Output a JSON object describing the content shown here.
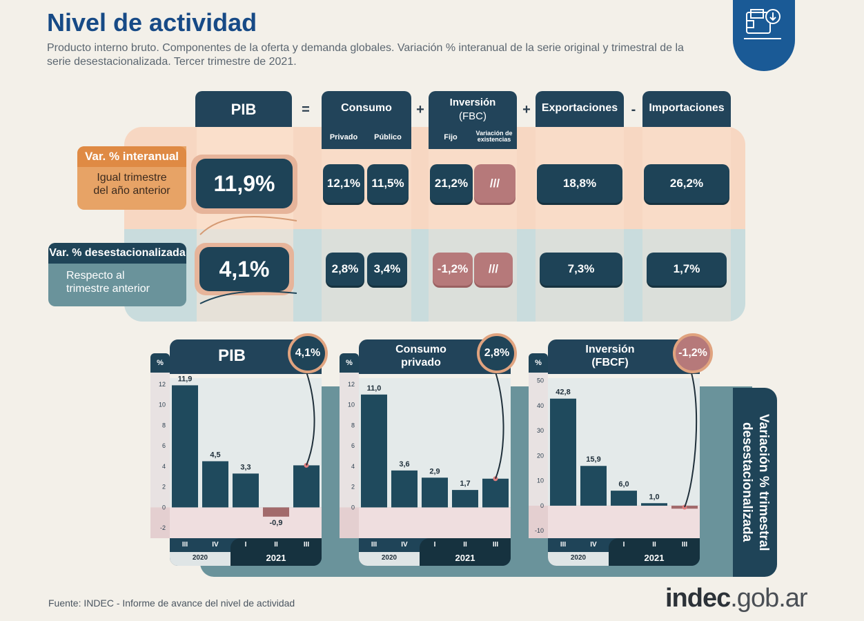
{
  "title": "Nivel de actividad",
  "subtitle": "Producto interno bruto. Componentes de la oferta y demanda globales. Variación % interanual de la serie original y trimestral de la serie desestacionalizada. Tercer trimestre de 2021.",
  "equation": {
    "pib": "PIB",
    "eq": "=",
    "plus1": "+",
    "plus2": "+",
    "minus": "-",
    "consumo": "Consumo",
    "privado": "Privado",
    "publico": "Público",
    "inversion": "Inversión",
    "inversion_sub": "(FBC)",
    "fijo": "Fijo",
    "var_exist_1": "Variación de",
    "var_exist_2": "existencias",
    "exportaciones": "Exportaciones",
    "importaciones": "Importaciones"
  },
  "row_interanual": {
    "tag": "Var. % interanual",
    "line1": "Igual trimestre",
    "line2": "del año anterior",
    "pib": "11,9%",
    "privado": "12,1%",
    "publico": "11,5%",
    "fijo": "21,2%",
    "existencias": "///",
    "exportaciones": "18,8%",
    "importaciones": "26,2%"
  },
  "row_desest": {
    "tag": "Var. % desestacionalizada",
    "line1": "Respecto al",
    "line2": "trimestre anterior",
    "pib": "4,1%",
    "privado": "2,8%",
    "publico": "3,4%",
    "fijo": "-1,2%",
    "existencias": "///",
    "exportaciones": "7,3%",
    "importaciones": "1,7%"
  },
  "chart_data": [
    {
      "type": "bar",
      "title": "PIB",
      "highlight": "4,1%",
      "ylabel": "%",
      "categories": [
        "III",
        "IV",
        "I",
        "II",
        "III"
      ],
      "years": [
        "2020",
        "2021"
      ],
      "values": [
        11.9,
        4.5,
        3.3,
        -0.9,
        4.1
      ],
      "value_labels": [
        "11,9",
        "4,5",
        "3,3",
        "-0,9",
        ""
      ],
      "yticks": [
        "12",
        "10",
        "8",
        "6",
        "4",
        "2",
        "0",
        "-2"
      ],
      "ylim": [
        -3,
        12.6
      ]
    },
    {
      "type": "bar",
      "title_line1": "Consumo",
      "title_line2": "privado",
      "highlight": "2,8%",
      "ylabel": "%",
      "categories": [
        "III",
        "IV",
        "I",
        "II",
        "III"
      ],
      "years": [
        "2020",
        "2021"
      ],
      "values": [
        11.0,
        3.6,
        2.9,
        1.7,
        2.8
      ],
      "value_labels": [
        "11,0",
        "3,6",
        "2,9",
        "1,7",
        ""
      ],
      "yticks": [
        "12",
        "10",
        "8",
        "6",
        "4",
        "2",
        "0"
      ],
      "ylim": [
        -3,
        12.6
      ]
    },
    {
      "type": "bar",
      "title_line1": "Inversión",
      "title_line2": "(FBCF)",
      "highlight": "-1,2%",
      "ylabel": "%",
      "categories": [
        "III",
        "IV",
        "I",
        "II",
        "III"
      ],
      "years": [
        "2020",
        "2021"
      ],
      "values": [
        42.8,
        15.9,
        6.0,
        1.0,
        -1.2
      ],
      "value_labels": [
        "42,8",
        "15,9",
        "6,0",
        "1,0",
        ""
      ],
      "yticks": [
        "50",
        "40",
        "30",
        "20",
        "10",
        "0",
        "-10"
      ],
      "ylim": [
        -13,
        51
      ]
    }
  ],
  "side_label_1": "Variación % trimestral",
  "side_label_2": "desestacionalizada",
  "footer": "Fuente: INDEC - Informe de avance del nivel de actividad",
  "brand_1": "indec",
  "brand_2": ".gob.ar",
  "colors": {
    "accent": "#174a86",
    "dark": "#1f4458",
    "rose": "#b6797a",
    "orange": "#df8a44"
  },
  "icon": "wallet-download-icon"
}
